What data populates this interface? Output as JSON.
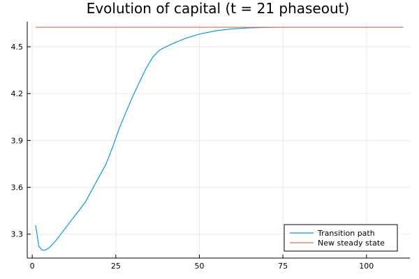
{
  "chart_data": {
    "type": "line",
    "title": "Evolution of capital (t = 21 phaseout)",
    "xlabel": "",
    "ylabel": "",
    "xlim": [
      -1.5,
      113
    ],
    "ylim": [
      3.147,
      4.661
    ],
    "xticks": [
      0,
      25,
      50,
      75,
      100
    ],
    "yticks": [
      3.3,
      3.6,
      3.9,
      4.2,
      4.5
    ],
    "ytick_labels": [
      "3.3",
      "3.6",
      "3.9",
      "4.2",
      "4.5"
    ],
    "grid": true,
    "legend_position": "bottom-right",
    "series": [
      {
        "name": "Transition path",
        "color": "#009af9",
        "x": [
          1,
          2,
          3,
          4,
          5,
          6,
          7,
          8,
          9,
          10,
          12,
          14,
          16,
          18,
          20,
          22,
          24,
          26,
          28,
          30,
          32,
          34,
          36,
          38,
          40,
          43,
          46,
          50,
          55,
          60,
          65,
          70,
          75,
          80,
          90,
          100,
          111
        ],
        "y": [
          3.357,
          3.221,
          3.197,
          3.199,
          3.212,
          3.233,
          3.258,
          3.285,
          3.313,
          3.341,
          3.397,
          3.452,
          3.51,
          3.589,
          3.668,
          3.745,
          3.855,
          3.976,
          4.079,
          4.179,
          4.271,
          4.359,
          4.432,
          4.477,
          4.5,
          4.529,
          4.555,
          4.581,
          4.603,
          4.615,
          4.621,
          4.624,
          4.625,
          4.625,
          4.625,
          4.625,
          4.625
        ]
      },
      {
        "name": "New steady state",
        "color": "#e26f46",
        "x": [
          1,
          111
        ],
        "y": [
          4.625,
          4.625
        ]
      }
    ]
  }
}
